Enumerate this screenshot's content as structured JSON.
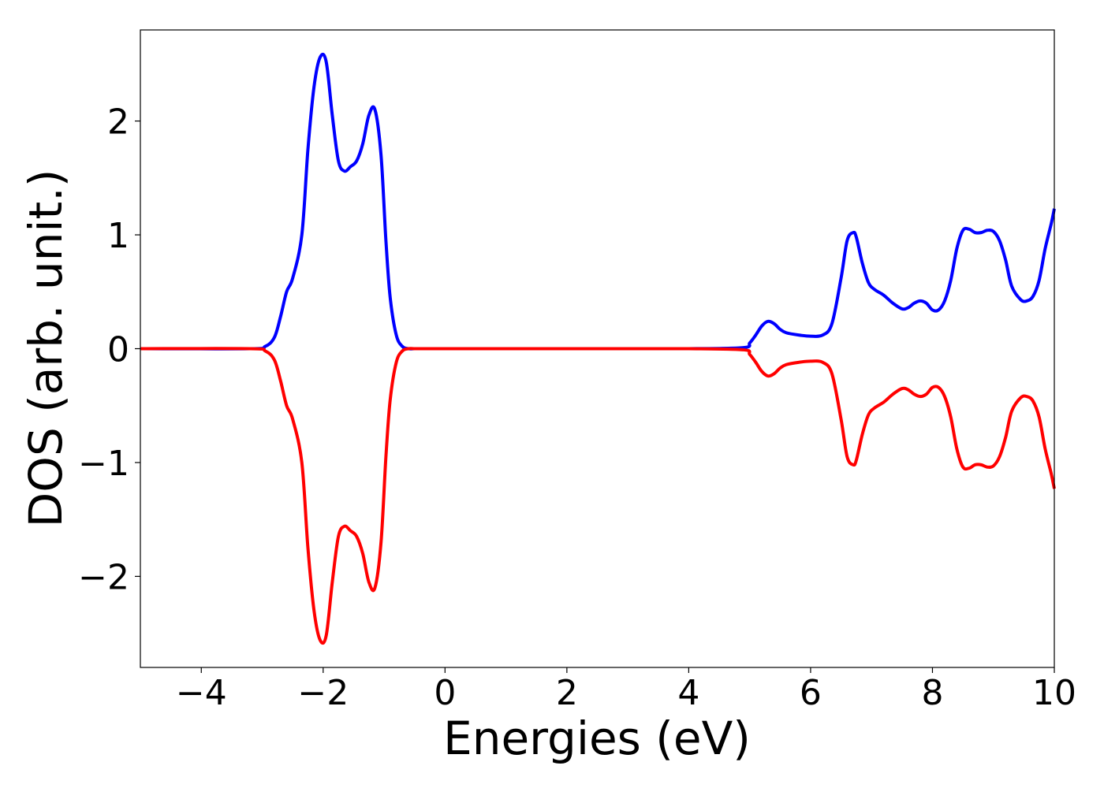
{
  "chart_data": {
    "type": "line",
    "title": "",
    "xlabel": "Energies (eV)",
    "ylabel": "DOS (arb. unit.)",
    "xlim": [
      -5,
      10
    ],
    "ylim": [
      -2.8,
      2.8
    ],
    "xticks": [
      -4,
      -2,
      0,
      2,
      4,
      6,
      8,
      10
    ],
    "xtick_labels": [
      "−4",
      "−2",
      "0",
      "2",
      "4",
      "6",
      "8",
      "10"
    ],
    "yticks": [
      -2,
      -1,
      0,
      1,
      2
    ],
    "ytick_labels": [
      "−2",
      "−1",
      "0",
      "1",
      "2"
    ],
    "grid": false,
    "legend": "none",
    "series": [
      {
        "color": "#0000ff",
        "x": [
          -5.0,
          -3.2,
          -2.95,
          -2.8,
          -2.7,
          -2.6,
          -2.5,
          -2.35,
          -2.25,
          -2.15,
          -2.05,
          -1.95,
          -1.85,
          -1.75,
          -1.65,
          -1.55,
          -1.45,
          -1.35,
          -1.25,
          -1.15,
          -1.05,
          -0.97,
          -0.9,
          -0.8,
          -0.7,
          -0.6,
          -0.5,
          -0.4,
          0.0,
          2.0,
          4.0,
          4.9,
          5.0,
          5.1,
          5.2,
          5.3,
          5.4,
          5.5,
          5.6,
          5.8,
          6.0,
          6.2,
          6.35,
          6.5,
          6.6,
          6.7,
          6.75,
          6.85,
          6.95,
          7.05,
          7.2,
          7.35,
          7.5,
          7.6,
          7.7,
          7.8,
          7.9,
          8.0,
          8.1,
          8.2,
          8.3,
          8.4,
          8.5,
          8.6,
          8.7,
          8.8,
          8.9,
          9.0,
          9.1,
          9.2,
          9.3,
          9.45,
          9.55,
          9.65,
          9.75,
          9.85,
          9.95,
          10.0
        ],
        "y": [
          0.0,
          0.0,
          0.02,
          0.1,
          0.28,
          0.5,
          0.62,
          1.0,
          1.75,
          2.3,
          2.56,
          2.52,
          2.05,
          1.65,
          1.56,
          1.6,
          1.65,
          1.8,
          2.05,
          2.1,
          1.7,
          0.95,
          0.45,
          0.12,
          0.02,
          0.0,
          0.0,
          0.0,
          0.0,
          0.0,
          0.0,
          0.01,
          0.05,
          0.12,
          0.2,
          0.24,
          0.22,
          0.17,
          0.14,
          0.12,
          0.11,
          0.12,
          0.22,
          0.62,
          0.95,
          1.02,
          0.98,
          0.75,
          0.58,
          0.52,
          0.47,
          0.4,
          0.35,
          0.36,
          0.4,
          0.42,
          0.4,
          0.34,
          0.34,
          0.42,
          0.6,
          0.88,
          1.04,
          1.05,
          1.02,
          1.02,
          1.04,
          1.03,
          0.95,
          0.78,
          0.55,
          0.43,
          0.42,
          0.46,
          0.6,
          0.88,
          1.1,
          1.23
        ]
      },
      {
        "color": "#ff0000",
        "x": [
          -5.0,
          -3.2,
          -2.95,
          -2.8,
          -2.7,
          -2.6,
          -2.5,
          -2.35,
          -2.25,
          -2.15,
          -2.05,
          -1.95,
          -1.85,
          -1.75,
          -1.65,
          -1.55,
          -1.45,
          -1.35,
          -1.25,
          -1.15,
          -1.05,
          -0.97,
          -0.9,
          -0.8,
          -0.7,
          -0.6,
          -0.5,
          -0.4,
          0.0,
          2.0,
          4.0,
          4.9,
          5.0,
          5.1,
          5.2,
          5.3,
          5.4,
          5.5,
          5.6,
          5.8,
          6.0,
          6.2,
          6.35,
          6.5,
          6.6,
          6.7,
          6.75,
          6.85,
          6.95,
          7.05,
          7.2,
          7.35,
          7.5,
          7.6,
          7.7,
          7.8,
          7.9,
          8.0,
          8.1,
          8.2,
          8.3,
          8.4,
          8.5,
          8.6,
          8.7,
          8.8,
          8.9,
          9.0,
          9.1,
          9.2,
          9.3,
          9.45,
          9.55,
          9.65,
          9.75,
          9.85,
          9.95,
          10.0
        ],
        "y": [
          0.0,
          0.0,
          -0.02,
          -0.1,
          -0.28,
          -0.5,
          -0.62,
          -1.0,
          -1.75,
          -2.3,
          -2.56,
          -2.52,
          -2.05,
          -1.65,
          -1.56,
          -1.6,
          -1.65,
          -1.8,
          -2.05,
          -2.1,
          -1.7,
          -0.95,
          -0.45,
          -0.12,
          -0.02,
          0.0,
          0.0,
          0.0,
          0.0,
          0.0,
          0.0,
          -0.01,
          -0.05,
          -0.12,
          -0.2,
          -0.24,
          -0.22,
          -0.17,
          -0.14,
          -0.12,
          -0.11,
          -0.12,
          -0.22,
          -0.62,
          -0.95,
          -1.02,
          -0.98,
          -0.75,
          -0.58,
          -0.52,
          -0.47,
          -0.4,
          -0.35,
          -0.36,
          -0.4,
          -0.42,
          -0.4,
          -0.34,
          -0.34,
          -0.42,
          -0.6,
          -0.88,
          -1.04,
          -1.05,
          -1.02,
          -1.02,
          -1.04,
          -1.03,
          -0.95,
          -0.78,
          -0.55,
          -0.43,
          -0.42,
          -0.46,
          -0.6,
          -0.88,
          -1.1,
          -1.23
        ]
      }
    ]
  }
}
